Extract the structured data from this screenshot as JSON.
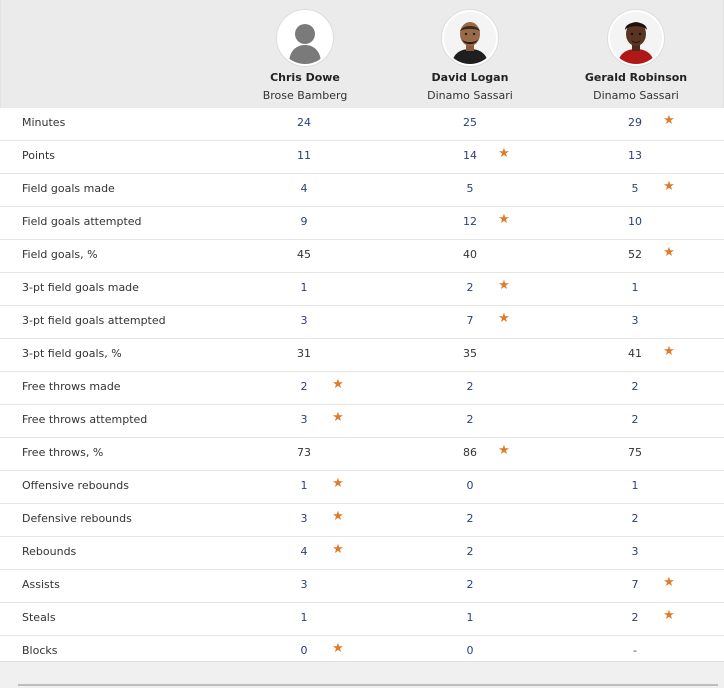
{
  "players": [
    {
      "name": "Chris Dowe",
      "team": "Brose Bamberg",
      "avatar_icon": "silhouette-avatar-icon"
    },
    {
      "name": "David Logan",
      "team": "Dinamo Sassari",
      "avatar_icon": "player-photo-icon"
    },
    {
      "name": "Gerald Robinson",
      "team": "Dinamo Sassari",
      "avatar_icon": "player-photo-icon"
    }
  ],
  "accent_color": "#e07b2a",
  "stats": [
    {
      "label": "Minutes",
      "values": [
        "24",
        "25",
        "29"
      ],
      "best": [
        false,
        false,
        true
      ]
    },
    {
      "label": "Points",
      "values": [
        "11",
        "14",
        "13"
      ],
      "best": [
        false,
        true,
        false
      ]
    },
    {
      "label": "Field goals made",
      "values": [
        "4",
        "5",
        "5"
      ],
      "best": [
        false,
        false,
        true
      ]
    },
    {
      "label": "Field goals attempted",
      "values": [
        "9",
        "12",
        "10"
      ],
      "best": [
        false,
        true,
        false
      ]
    },
    {
      "label": "Field goals, %",
      "values": [
        "45",
        "40",
        "52"
      ],
      "best": [
        false,
        false,
        true
      ]
    },
    {
      "label": "3-pt field goals made",
      "values": [
        "1",
        "2",
        "1"
      ],
      "best": [
        false,
        true,
        false
      ]
    },
    {
      "label": "3-pt field goals attempted",
      "values": [
        "3",
        "7",
        "3"
      ],
      "best": [
        false,
        true,
        false
      ]
    },
    {
      "label": "3-pt field goals, %",
      "values": [
        "31",
        "35",
        "41"
      ],
      "best": [
        false,
        false,
        true
      ]
    },
    {
      "label": "Free throws made",
      "values": [
        "2",
        "2",
        "2"
      ],
      "best": [
        true,
        false,
        false
      ]
    },
    {
      "label": "Free throws attempted",
      "values": [
        "3",
        "2",
        "2"
      ],
      "best": [
        true,
        false,
        false
      ]
    },
    {
      "label": "Free throws, %",
      "values": [
        "73",
        "86",
        "75"
      ],
      "best": [
        false,
        true,
        false
      ]
    },
    {
      "label": "Offensive rebounds",
      "values": [
        "1",
        "0",
        "1"
      ],
      "best": [
        true,
        false,
        false
      ]
    },
    {
      "label": "Defensive rebounds",
      "values": [
        "3",
        "2",
        "2"
      ],
      "best": [
        true,
        false,
        false
      ]
    },
    {
      "label": "Rebounds",
      "values": [
        "4",
        "2",
        "3"
      ],
      "best": [
        true,
        false,
        false
      ]
    },
    {
      "label": "Assists",
      "values": [
        "3",
        "2",
        "7"
      ],
      "best": [
        false,
        false,
        true
      ]
    },
    {
      "label": "Steals",
      "values": [
        "1",
        "1",
        "2"
      ],
      "best": [
        false,
        false,
        true
      ]
    },
    {
      "label": "Blocks",
      "values": [
        "0",
        "0",
        "-"
      ],
      "best": [
        true,
        false,
        false
      ]
    }
  ]
}
